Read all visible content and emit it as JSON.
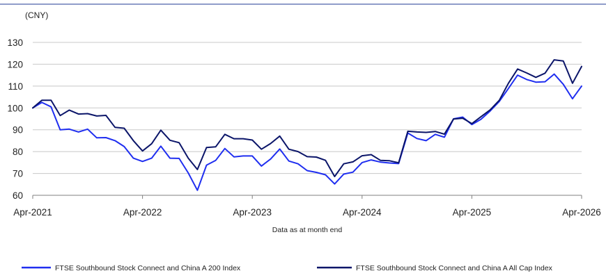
{
  "chart_data": {
    "type": "line",
    "ylabel": "(CNY)",
    "xlabel": "Data as at month end",
    "ylim": [
      60,
      130
    ],
    "yticks": [
      60,
      70,
      80,
      90,
      100,
      110,
      120,
      130
    ],
    "xlim": [
      0,
      60
    ],
    "xticks": [
      {
        "x": 0,
        "label": "Apr-2021"
      },
      {
        "x": 12,
        "label": "Apr-2022"
      },
      {
        "x": 24,
        "label": "Apr-2023"
      },
      {
        "x": 36,
        "label": "Apr-2024"
      },
      {
        "x": 48,
        "label": "Apr-2025"
      },
      {
        "x": 60,
        "label": "Apr-2026"
      }
    ],
    "grid": "horizontal",
    "legend_position": "bottom",
    "colors": {
      "series_200": "#1f2ef0",
      "series_allcap": "#0b1569",
      "grid": "#c8c8c8",
      "axis": "#7f7f7f",
      "top_rule": "#1f3a93"
    },
    "series": [
      {
        "name": "FTSE Southbound Stock Connect and China A 200 Index",
        "color": "#1f2ef0",
        "values": [
          100,
          102.5,
          100.5,
          90,
          90.3,
          89,
          90.3,
          86.3,
          86.4,
          85,
          82.3,
          77,
          75.5,
          77,
          82.5,
          77,
          76.9,
          70.2,
          62.3,
          73.8,
          76,
          81.4,
          77.6,
          78,
          78,
          73.4,
          76.6,
          81.2,
          75.7,
          74.4,
          71.3,
          70.5,
          69.4,
          65.2,
          69.7,
          70.6,
          75,
          76.2,
          75.2,
          74.8,
          74.5,
          88.5,
          86,
          85,
          87.9,
          86.6,
          95,
          95.8,
          92.4,
          94.8,
          98.6,
          103,
          108.9,
          115,
          113,
          111.8,
          112,
          115.5,
          110.8,
          104.2,
          110
        ]
      },
      {
        "name": "FTSE Southbound Stock Connect and China A All Cap Index",
        "color": "#0b1569",
        "values": [
          100,
          103.5,
          103.5,
          96.5,
          99,
          97.2,
          97.4,
          96.3,
          96.6,
          91.1,
          90.7,
          85,
          80.3,
          83.6,
          89.8,
          85.2,
          84.1,
          77,
          71.8,
          81.9,
          82.2,
          87.9,
          85.9,
          85.9,
          85.3,
          81.1,
          83.7,
          87.1,
          81.1,
          80,
          77.7,
          77.5,
          76,
          68.6,
          74.4,
          75.3,
          78.1,
          78.6,
          76,
          75.8,
          74.9,
          89.3,
          89,
          88.8,
          89.2,
          88,
          94.9,
          95.3,
          92.8,
          96,
          99.1,
          103.5,
          111.3,
          117.8,
          116,
          114,
          115.9,
          122,
          121.5,
          111.3,
          119
        ]
      }
    ]
  }
}
